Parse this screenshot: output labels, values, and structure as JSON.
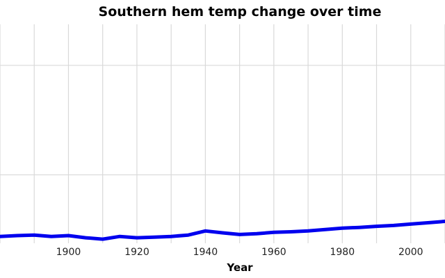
{
  "chart_data": {
    "type": "line",
    "title": "Southern hem temp change over time",
    "xlabel": "Year",
    "ylabel": "",
    "xlim": [
      1880,
      2010
    ],
    "xticks": [
      1900,
      1920,
      1940,
      1960,
      1980,
      2000
    ],
    "ylim": [
      -0.5,
      7.5
    ],
    "grid": true,
    "legend": "none",
    "series": [
      {
        "color": "#0000ee",
        "x": [
          1880,
          1885,
          1890,
          1895,
          1900,
          1905,
          1910,
          1915,
          1920,
          1925,
          1930,
          1935,
          1940,
          1945,
          1950,
          1955,
          1960,
          1965,
          1970,
          1975,
          1980,
          1985,
          1990,
          1995,
          2000,
          2005,
          2010
        ],
        "y": [
          -0.25,
          -0.22,
          -0.2,
          -0.25,
          -0.22,
          -0.3,
          -0.35,
          -0.25,
          -0.3,
          -0.28,
          -0.25,
          -0.2,
          -0.05,
          -0.12,
          -0.18,
          -0.15,
          -0.1,
          -0.08,
          -0.05,
          0.0,
          0.05,
          0.08,
          0.12,
          0.15,
          0.2,
          0.25,
          0.3
        ]
      }
    ]
  }
}
